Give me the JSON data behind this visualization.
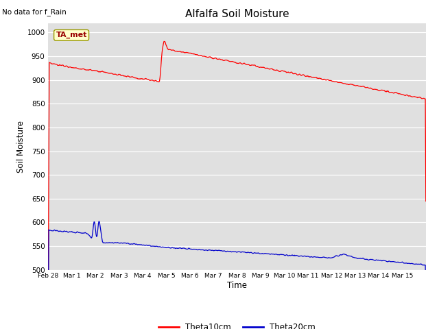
{
  "title": "Alfalfa Soil Moisture",
  "xlabel": "Time",
  "ylabel": "Soil Moisture",
  "top_left_text": "No data for f_Rain",
  "annotation_box_text": "TA_met",
  "annotation_box_color": "#ffffcc",
  "annotation_box_edge_color": "#999900",
  "annotation_text_color": "#990000",
  "ylim": [
    500,
    1020
  ],
  "yticks": [
    500,
    550,
    600,
    650,
    700,
    750,
    800,
    850,
    900,
    950,
    1000
  ],
  "bg_color": "#e0e0e0",
  "fig_bg_color": "#ffffff",
  "line1_color": "#ff0000",
  "line2_color": "#0000cc",
  "legend_label1": "Theta10cm",
  "legend_label2": "Theta20cm",
  "xtick_labels": [
    "Feb 28",
    "Mar 1",
    "Mar 2",
    "Mar 3",
    "Mar 4",
    "Mar 5",
    "Mar 6",
    "Mar 7",
    "Mar 8",
    "Mar 9",
    "Mar 10",
    "Mar 11",
    "Mar 12",
    "Mar 13",
    "Mar 14",
    "Mar 15"
  ]
}
